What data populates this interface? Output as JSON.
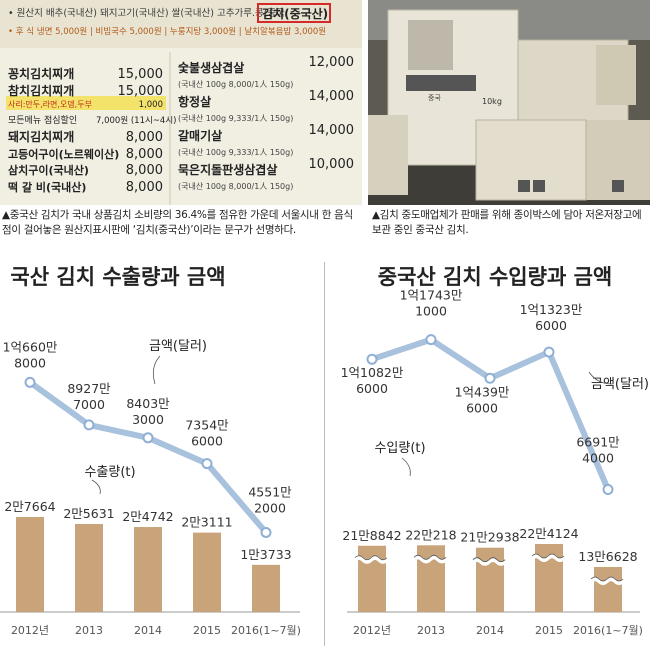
{
  "photo_left": {
    "origin_line": "• 원산지 배추(국내산) 돼지고기(국내산) 쌀(국내산) 고추가루.콩(중국",
    "highlight": "김치(중국산)",
    "sub_line": "• 후  식 냉면 5,000원 | 비빔국수 5,000원 | 누룽지탕 3,000원 | 날치알볶음밥 3,000원",
    "menu_left": [
      {
        "name": "꽁치김치찌개",
        "price": "15,000"
      },
      {
        "name": "참치김치찌개",
        "price": "15,000"
      },
      {
        "name": "사리:만두,라면,오뎅,두부",
        "price": "1,000"
      },
      {
        "name": "모든메뉴 점심할인",
        "price": "7,000원 (11시~4시)"
      },
      {
        "name": "돼지김치찌개",
        "price": "8,000"
      },
      {
        "name": "고등어구이(노르웨이산)",
        "price": "8,000"
      },
      {
        "name": "삼치구이(국내산)",
        "price": "8,000"
      },
      {
        "name": "떡 갈 비(국내산)",
        "price": "8,000"
      }
    ],
    "menu_right": [
      {
        "name": "숯불생삼겹살",
        "detail": "(국내산 100g 8,000/1人 150g)",
        "price": "12,000"
      },
      {
        "name": "항정살",
        "detail": "(국내산 100g 9,333/1人 150g)",
        "price": "14,000"
      },
      {
        "name": "갈매기살",
        "detail": "(국내산 100g 9,333/1人 150g)",
        "price": "14,000"
      },
      {
        "name": "묵은지돌판생삼겹살",
        "detail": "(국내산 100g 8,000/1人 150g)",
        "price": "10,000"
      }
    ]
  },
  "photo_right": {
    "box_weight": "10kg",
    "box_origin": "중국"
  },
  "captions": {
    "left": "▲중국산 김치가 국내 상품김치 소비량의 36.4%를 점유한 가운데 서울시내 한 음식점이 걸어놓은 원산지표시판에 ‘김치(중국산)’이라는 문구가 선명하다.",
    "right": "▲김치 중도매업체가 판매를 위해 종이박스에 담아 저온저장고에 보관 중인 중국산 김치."
  },
  "colors": {
    "bar": "#c9a37a",
    "line": "#a8c1dc",
    "marker_fill": "#ffffff",
    "marker_stroke": "#8fb0d4",
    "text": "#333333",
    "axis": "#999999"
  },
  "chart_data": [
    {
      "type": "bar",
      "title": "국산 김치 수출량과 금액",
      "categories": [
        "2012년",
        "2013",
        "2014",
        "2015",
        "2016(1~7월)"
      ],
      "series": [
        {
          "name": "수출량(t)",
          "type": "bar",
          "values": [
            27664,
            25631,
            24742,
            23111,
            13733
          ],
          "labels": [
            "2만7664",
            "2만5631",
            "2만4742",
            "2만3111",
            "1만3733"
          ]
        },
        {
          "name": "금액(달러)",
          "type": "line",
          "values": [
            106608000,
            89277000,
            84033000,
            73546000,
            45512000
          ],
          "labels": [
            [
              "1억660만",
              "8000"
            ],
            [
              "8927만",
              "7000"
            ],
            [
              "8403만",
              "3000"
            ],
            [
              "7354만",
              "6000"
            ],
            [
              "4551만",
              "2000"
            ]
          ]
        }
      ],
      "axis_break": false
    },
    {
      "type": "bar",
      "title": "중국산 김치 수입량과 금액",
      "categories": [
        "2012년",
        "2013",
        "2014",
        "2015",
        "2016(1~7월)"
      ],
      "series": [
        {
          "name": "수입량(t)",
          "type": "bar",
          "values": [
            218842,
            220218,
            212938,
            224124,
            136628
          ],
          "labels": [
            "21만8842",
            "22만218",
            "21만2938",
            "22만4124",
            "13만6628"
          ]
        },
        {
          "name": "금액(달러)",
          "type": "line",
          "values": [
            110826000,
            117431000,
            104396000,
            113236000,
            66914000
          ],
          "labels": [
            [
              "1억1082만",
              "6000"
            ],
            [
              "1억1743만",
              "1000"
            ],
            [
              "1억439만",
              "6000"
            ],
            [
              "1억1323만",
              "6000"
            ],
            [
              "6691만",
              "4000"
            ]
          ]
        }
      ],
      "axis_break": true
    }
  ]
}
